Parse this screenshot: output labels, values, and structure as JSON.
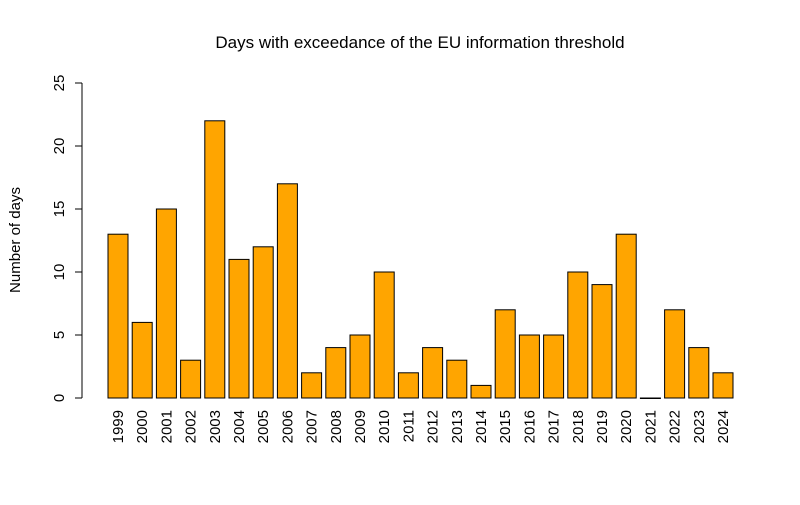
{
  "chart_data": {
    "type": "bar",
    "title": "Days with exceedance of the EU information threshold",
    "xlabel": "",
    "ylabel": "Number of days",
    "ylim": [
      0,
      25
    ],
    "yticks": [
      "0",
      "5",
      "10",
      "15",
      "20",
      "25"
    ],
    "grid": false,
    "bar_color": "#FFA500",
    "categories": [
      "1999",
      "2000",
      "2001",
      "2002",
      "2003",
      "2004",
      "2005",
      "2006",
      "2007",
      "2008",
      "2009",
      "2010",
      "2011",
      "2012",
      "2013",
      "2014",
      "2015",
      "2016",
      "2017",
      "2018",
      "2019",
      "2020",
      "2021",
      "2022",
      "2023",
      "2024"
    ],
    "values": [
      13,
      6,
      15,
      3,
      22,
      11,
      12,
      17,
      2,
      4,
      5,
      10,
      2,
      4,
      3,
      1,
      7,
      5,
      5,
      10,
      9,
      13,
      0,
      7,
      4,
      2
    ]
  }
}
